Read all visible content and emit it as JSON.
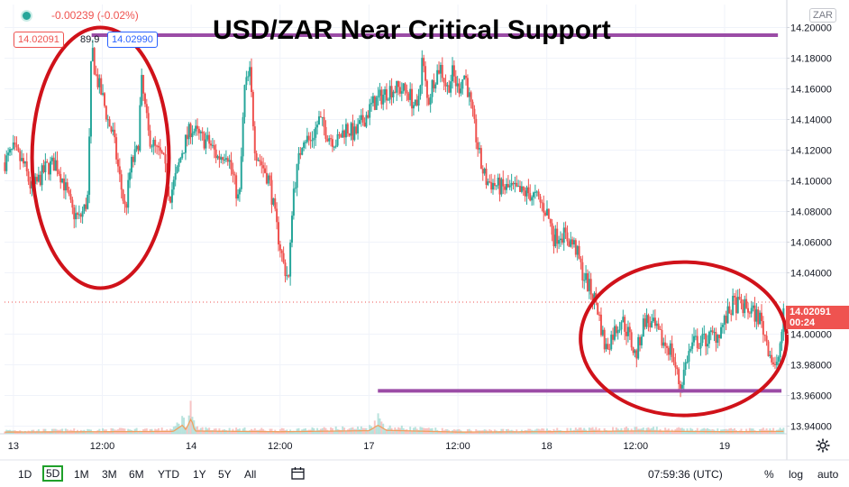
{
  "header": {
    "change_text": "-0.00239 (-0.02%)",
    "bid_value": "14.02091",
    "spread_value": "89.9",
    "ask_value": "14.02990",
    "currency_badge": "ZAR"
  },
  "title": "USD/ZAR Near Critical Support",
  "current_price": {
    "value": 14.02091,
    "label": "14.02091",
    "countdown": "00:24",
    "color": "#ef5350"
  },
  "toolbar": {
    "ranges": [
      "1D",
      "5D",
      "1M",
      "3M",
      "6M",
      "YTD",
      "1Y",
      "5Y",
      "All"
    ],
    "active_range": "5D",
    "time": "07:59:36 (UTC)",
    "percent_label": "%",
    "log_label": "log",
    "auto_label": "auto"
  },
  "icons": {
    "settings": "gear-icon",
    "compare": "calendar-icon"
  },
  "colors": {
    "up": "#26a69a",
    "down": "#ef5350",
    "annotation_line": "#9b4ca6",
    "annotation_circle": "#d0121a",
    "volume_ma": "#f0a060"
  },
  "chart_data": {
    "type": "candlestick",
    "title": "USD/ZAR Near Critical Support",
    "y_ticks": [
      "14.20000",
      "14.18000",
      "14.16000",
      "14.14000",
      "14.12000",
      "14.10000",
      "14.08000",
      "14.06000",
      "14.04000",
      "14.00000",
      "13.98000",
      "13.96000",
      "13.94000"
    ],
    "y_tick_values": [
      14.2,
      14.18,
      14.16,
      14.14,
      14.12,
      14.1,
      14.08,
      14.06,
      14.04,
      14.0,
      13.98,
      13.96,
      13.94
    ],
    "ylim": [
      13.935,
      14.215
    ],
    "x_ticks": [
      "13",
      "12:00",
      "14",
      "12:00",
      "17",
      "12:00",
      "18",
      "12:00",
      "19"
    ],
    "x_tick_positions": [
      0,
      0.5,
      1,
      1.5,
      2,
      2.5,
      3,
      3.5,
      4
    ],
    "xlim": [
      -0.05,
      4.35
    ],
    "price_path": [
      [
        -0.05,
        14.112
      ],
      [
        0.0,
        14.12
      ],
      [
        0.06,
        14.11
      ],
      [
        0.1,
        14.095
      ],
      [
        0.13,
        14.098
      ],
      [
        0.18,
        14.108
      ],
      [
        0.24,
        14.112
      ],
      [
        0.28,
        14.1
      ],
      [
        0.33,
        14.08
      ],
      [
        0.37,
        14.075
      ],
      [
        0.4,
        14.082
      ],
      [
        0.42,
        14.09
      ],
      [
        0.44,
        14.19
      ],
      [
        0.46,
        14.17
      ],
      [
        0.5,
        14.155
      ],
      [
        0.53,
        14.14
      ],
      [
        0.56,
        14.13
      ],
      [
        0.6,
        14.1
      ],
      [
        0.63,
        14.08
      ],
      [
        0.66,
        14.11
      ],
      [
        0.7,
        14.12
      ],
      [
        0.72,
        14.165
      ],
      [
        0.76,
        14.13
      ],
      [
        0.8,
        14.12
      ],
      [
        0.84,
        14.115
      ],
      [
        0.88,
        14.09
      ],
      [
        0.92,
        14.105
      ],
      [
        0.95,
        14.12
      ],
      [
        1.0,
        14.135
      ],
      [
        1.05,
        14.128
      ],
      [
        1.1,
        14.125
      ],
      [
        1.15,
        14.115
      ],
      [
        1.2,
        14.12
      ],
      [
        1.24,
        14.1
      ],
      [
        1.27,
        14.085
      ],
      [
        1.3,
        14.16
      ],
      [
        1.33,
        14.17
      ],
      [
        1.36,
        14.12
      ],
      [
        1.4,
        14.11
      ],
      [
        1.44,
        14.1
      ],
      [
        1.48,
        14.07
      ],
      [
        1.52,
        14.045
      ],
      [
        1.55,
        14.035
      ],
      [
        1.57,
        14.09
      ],
      [
        1.6,
        14.11
      ],
      [
        1.63,
        14.13
      ],
      [
        1.67,
        14.125
      ],
      [
        1.72,
        14.14
      ],
      [
        1.77,
        14.13
      ],
      [
        1.82,
        14.125
      ],
      [
        1.87,
        14.135
      ],
      [
        1.92,
        14.13
      ],
      [
        1.97,
        14.14
      ],
      [
        2.02,
        14.15
      ],
      [
        2.07,
        14.155
      ],
      [
        2.12,
        14.16
      ],
      [
        2.17,
        14.16
      ],
      [
        2.22,
        14.158
      ],
      [
        2.27,
        14.145
      ],
      [
        2.3,
        14.18
      ],
      [
        2.33,
        14.15
      ],
      [
        2.36,
        14.165
      ],
      [
        2.4,
        14.175
      ],
      [
        2.44,
        14.16
      ],
      [
        2.47,
        14.17
      ],
      [
        2.5,
        14.16
      ],
      [
        2.54,
        14.17
      ],
      [
        2.57,
        14.15
      ],
      [
        2.6,
        14.13
      ],
      [
        2.63,
        14.11
      ],
      [
        2.66,
        14.1
      ],
      [
        2.7,
        14.098
      ],
      [
        2.75,
        14.095
      ],
      [
        2.8,
        14.095
      ],
      [
        2.85,
        14.092
      ],
      [
        2.9,
        14.092
      ],
      [
        2.95,
        14.088
      ],
      [
        3.0,
        14.08
      ],
      [
        3.04,
        14.063
      ],
      [
        3.08,
        14.066
      ],
      [
        3.12,
        14.062
      ],
      [
        3.16,
        14.057
      ],
      [
        3.2,
        14.04
      ],
      [
        3.24,
        14.03
      ],
      [
        3.28,
        14.02
      ],
      [
        3.33,
        13.99
      ],
      [
        3.37,
        14.0
      ],
      [
        3.42,
        14.01
      ],
      [
        3.46,
        14.0
      ],
      [
        3.5,
        13.985
      ],
      [
        3.55,
        14.01
      ],
      [
        3.6,
        14.005
      ],
      [
        3.65,
        13.995
      ],
      [
        3.7,
        13.99
      ],
      [
        3.75,
        13.965
      ],
      [
        3.79,
        13.985
      ],
      [
        3.83,
        13.995
      ],
      [
        3.87,
        13.995
      ],
      [
        3.92,
        13.998
      ],
      [
        3.96,
        14.0
      ],
      [
        4.0,
        14.008
      ],
      [
        4.05,
        14.02
      ],
      [
        4.1,
        14.018
      ],
      [
        4.15,
        14.015
      ],
      [
        4.2,
        14.01
      ],
      [
        4.25,
        13.99
      ],
      [
        4.29,
        13.975
      ],
      [
        4.32,
        14.0
      ],
      [
        4.34,
        14.02
      ]
    ],
    "volume_profile": [
      [
        -0.05,
        0.05
      ],
      [
        0.5,
        0.06
      ],
      [
        0.9,
        0.07
      ],
      [
        0.95,
        0.25
      ],
      [
        0.97,
        0.12
      ],
      [
        1.0,
        0.45
      ],
      [
        1.02,
        0.08
      ],
      [
        1.5,
        0.06
      ],
      [
        2.0,
        0.09
      ],
      [
        2.05,
        0.25
      ],
      [
        2.1,
        0.1
      ],
      [
        2.5,
        0.05
      ],
      [
        3.0,
        0.06
      ],
      [
        3.5,
        0.08
      ],
      [
        4.0,
        0.06
      ],
      [
        4.35,
        0.07
      ]
    ],
    "annotations": {
      "resistance_level": 14.195,
      "resistance_x_range": [
        0.44,
        4.3
      ],
      "support_level": 13.963,
      "support_x_range": [
        2.05,
        4.32
      ],
      "ellipses": [
        {
          "center": [
            0.49,
            14.115
          ],
          "rx": 0.385,
          "ry": 0.085
        },
        {
          "center": [
            3.77,
            13.997
          ],
          "rx": 0.58,
          "ry": 0.05
        }
      ]
    }
  }
}
